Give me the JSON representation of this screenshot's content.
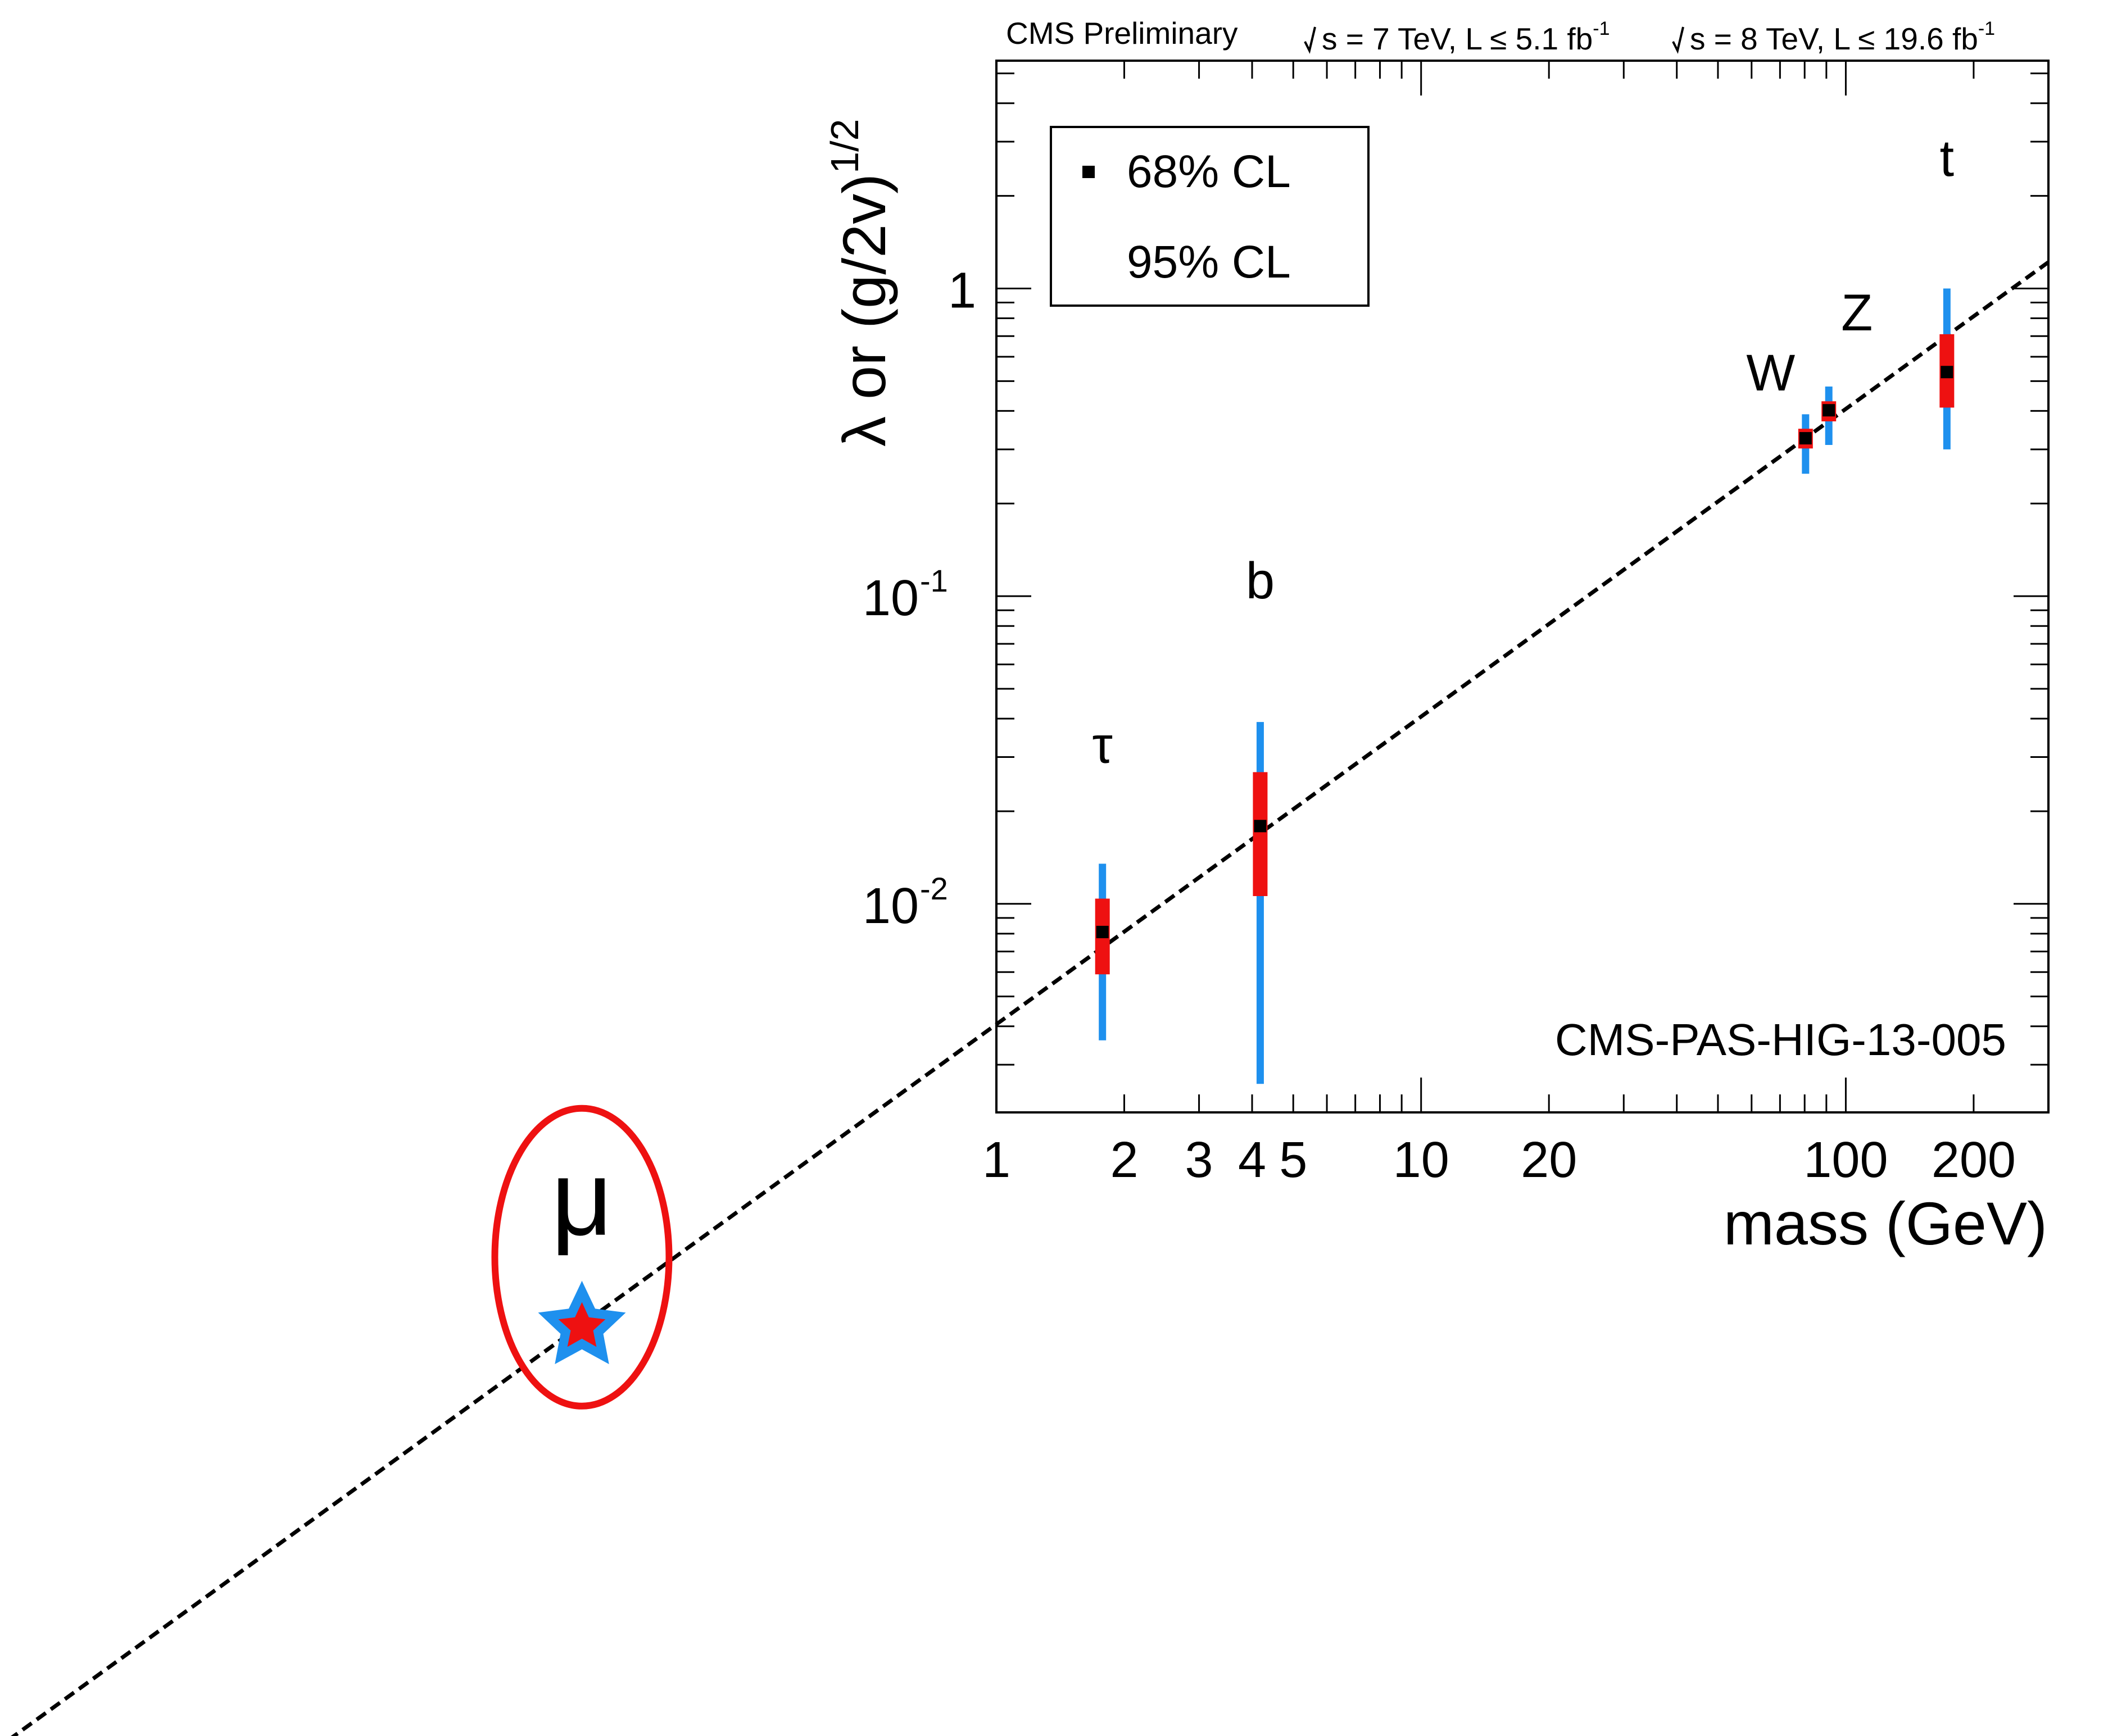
{
  "header": {
    "experiment": "CMS Preliminary",
    "run1": {
      "sqrt": "s = 7 TeV, L ≤ 5.1 fb",
      "sup": "-1"
    },
    "run2": {
      "sqrt": "s = 8 TeV, L ≤ 19.6 fb",
      "sup": "-1"
    }
  },
  "reference": "CMS-PAS-HIG-13-005",
  "colors": {
    "cl68": "#ee1111",
    "cl95": "#1e90ee",
    "marker": "#000000",
    "ellipse": "#ee1111"
  },
  "legend": {
    "placement": "top-left",
    "cl68": "68% CL",
    "cl95": "95% CL"
  },
  "chart_data": {
    "type": "scatter",
    "x_scale": "log",
    "y_scale": "log",
    "xlabel": "mass (GeV)",
    "ylabel": {
      "main": "λ or (g/2v)",
      "sup": "1/2"
    },
    "xlim": [
      1,
      300
    ],
    "ylim": [
      0.0021,
      5.5
    ],
    "x_ticks": [
      {
        "value": 1,
        "label": "1"
      },
      {
        "value": 2,
        "label": "2"
      },
      {
        "value": 3,
        "label": "3"
      },
      {
        "value": 4,
        "label": "4"
      },
      {
        "value": 5,
        "label": "5"
      },
      {
        "value": 10,
        "label": "10"
      },
      {
        "value": 20,
        "label": "20"
      },
      {
        "value": 100,
        "label": "100"
      },
      {
        "value": 200,
        "label": "200"
      }
    ],
    "y_ticks": [
      {
        "value": 1,
        "base": "1",
        "exp": ""
      },
      {
        "value": 0.1,
        "base": "10",
        "exp": "-1"
      },
      {
        "value": 0.01,
        "base": "10",
        "exp": "-2"
      }
    ],
    "points": [
      {
        "label": "τ",
        "mass": 1.777,
        "value": 0.0081,
        "cl68": [
          0.0059,
          0.0104
        ],
        "cl95": [
          0.0036,
          0.0135
        ]
      },
      {
        "label": "b",
        "mass": 4.18,
        "value": 0.0179,
        "cl68": [
          0.0106,
          0.0268
        ],
        "cl95": [
          0.0026,
          0.039
        ]
      },
      {
        "label": "W",
        "mass": 80.4,
        "value": 0.326,
        "cl68": [
          0.302,
          0.35
        ],
        "cl95": [
          0.25,
          0.39
        ]
      },
      {
        "label": "Z",
        "mass": 91.2,
        "value": 0.402,
        "cl68": [
          0.37,
          0.43
        ],
        "cl95": [
          0.31,
          0.48
        ]
      },
      {
        "label": "t",
        "mass": 173,
        "value": 0.535,
        "cl68": [
          0.41,
          0.71
        ],
        "cl95": [
          0.3,
          1.0
        ]
      }
    ],
    "sm_line": {
      "style": "dashed",
      "slope": 1,
      "coefficient": 0.00406
    },
    "annotation": {
      "label": "μ",
      "mass": 0.1057,
      "value": 0.000429,
      "marker": "star",
      "circled": true
    }
  }
}
